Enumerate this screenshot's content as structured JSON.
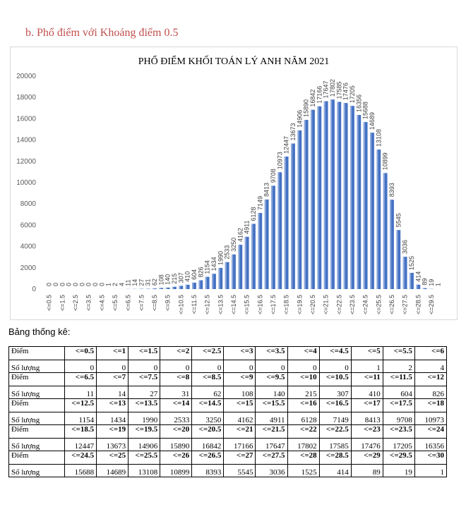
{
  "heading": "b.  Phổ điểm với Khoảng điểm 0.5",
  "table_caption": "Bảng thống kê:",
  "table_labels": {
    "score": "Điểm",
    "count": "Số lượng"
  },
  "chart_data": {
    "type": "bar",
    "title": "PHỔ ĐIỂM KHỐI TOÁN LÝ ANH  NĂM 2021",
    "xlabel": "",
    "ylabel": "",
    "ylim": [
      0,
      20000
    ],
    "yticks": [
      "0",
      "2000",
      "4000",
      "6000",
      "8000",
      "10000",
      "12000",
      "14000",
      "16000",
      "18000",
      "20000"
    ],
    "grid": false,
    "legend": "none",
    "bar_color": "#4472c4",
    "categories": [
      "<=0.5",
      "<=1",
      "<=1.5",
      "<=2",
      "<=2.5",
      "<=3",
      "<=3.5",
      "<=4",
      "<=4.5",
      "<=5",
      "<=5.5",
      "<=6",
      "<=6.5",
      "<=7",
      "<=7.5",
      "<=8",
      "<=8.5",
      "<=9",
      "<=9.5",
      "<=10",
      "<=10.5",
      "<=11",
      "<=11.5",
      "<=12",
      "<=12.5",
      "<=13",
      "<=13.5",
      "<=14",
      "<=14.5",
      "<=15",
      "<=15.5",
      "<=16",
      "<=16.5",
      "<=17",
      "<=17.5",
      "<=18",
      "<=18.5",
      "<=19",
      "<=19.5",
      "<=20",
      "<=20.5",
      "<=21",
      "<=21.5",
      "<=22",
      "<=22.5",
      "<=23",
      "<=23.5",
      "<=24",
      "<=24.5",
      "<=25",
      "<=25.5",
      "<=26",
      "<=26.5",
      "<=27",
      "<=27.5",
      "<=28",
      "<=28.5",
      "<=29",
      "<=29.5",
      "<=30"
    ],
    "values": [
      0,
      0,
      0,
      0,
      0,
      0,
      0,
      0,
      0,
      1,
      2,
      4,
      11,
      14,
      27,
      31,
      62,
      108,
      140,
      215,
      307,
      410,
      604,
      826,
      1154,
      1434,
      1990,
      2533,
      3250,
      4162,
      4911,
      6128,
      7149,
      8413,
      9708,
      10973,
      12447,
      13673,
      14906,
      15890,
      16842,
      17166,
      17647,
      17802,
      17585,
      17476,
      17205,
      16356,
      15688,
      14689,
      13108,
      10899,
      8393,
      5545,
      3036,
      1525,
      414,
      89,
      19,
      1
    ]
  }
}
